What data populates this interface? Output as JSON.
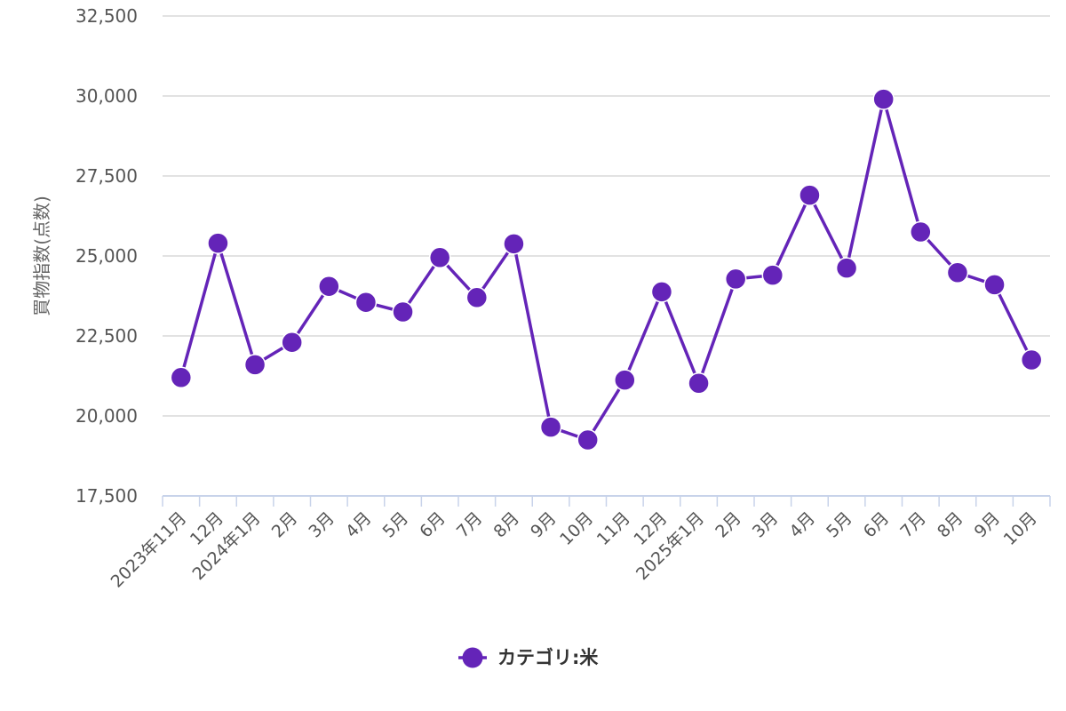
{
  "chart_data": {
    "type": "line",
    "ylabel": "買物指数(点数)",
    "ylim": [
      17500,
      32500
    ],
    "yticks": [
      17500,
      20000,
      22500,
      25000,
      27500,
      30000,
      32500
    ],
    "categories": [
      "2023年11月",
      "12月",
      "2024年1月",
      "2月",
      "3月",
      "4月",
      "5月",
      "6月",
      "7月",
      "8月",
      "9月",
      "10月",
      "11月",
      "12月",
      "2025年1月",
      "2月",
      "3月",
      "4月",
      "5月",
      "6月",
      "7月",
      "8月",
      "9月",
      "10月"
    ],
    "series": [
      {
        "name": "カテゴリ:米",
        "color": "#6424b8",
        "values": [
          21200,
          25400,
          21600,
          22300,
          24050,
          23550,
          23250,
          24950,
          23700,
          25380,
          19650,
          19250,
          21120,
          23880,
          21020,
          24280,
          24400,
          26900,
          24620,
          29900,
          25750,
          24480,
          24100,
          21750
        ]
      }
    ],
    "grid": true,
    "legend": {
      "position": "bottom-center"
    }
  }
}
